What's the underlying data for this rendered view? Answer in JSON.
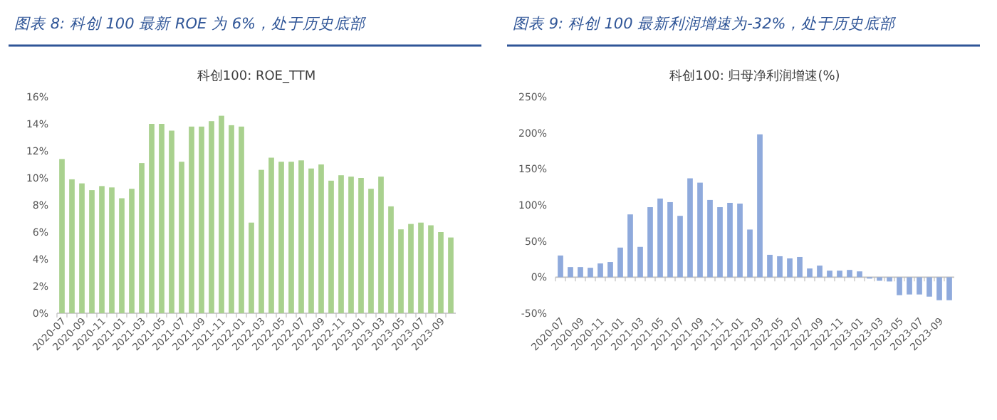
{
  "chart_data": [
    {
      "type": "bar",
      "title": "图表 8: 科创 100 最新 ROE 为 6%，处于历史底部",
      "subtitle": "科创100: ROE_TTM",
      "categories": [
        "2020-07",
        null,
        "2020-09",
        null,
        "2020-11",
        null,
        "2021-01",
        null,
        "2021-03",
        null,
        "2021-05",
        null,
        "2021-07",
        null,
        "2021-09",
        null,
        "2021-11",
        null,
        "2022-01",
        null,
        "2022-03",
        null,
        "2022-05",
        null,
        "2022-07",
        null,
        "2022-09",
        null,
        "2022-11",
        null,
        "2023-01",
        null,
        "2023-03",
        null,
        "2023-05",
        null,
        "2023-07",
        null,
        "2023-09",
        null
      ],
      "values": [
        11.4,
        9.9,
        9.6,
        9.1,
        9.4,
        9.3,
        8.5,
        9.2,
        11.1,
        14.0,
        14.0,
        13.5,
        11.2,
        13.8,
        13.8,
        14.2,
        14.6,
        13.9,
        13.8,
        6.7,
        10.6,
        11.5,
        11.2,
        11.2,
        11.3,
        10.7,
        11.0,
        9.8,
        10.2,
        10.1,
        10.0,
        9.2,
        10.1,
        7.9,
        6.2,
        6.6,
        6.7,
        6.5,
        6.0,
        5.6
      ],
      "color": "#a9d18e",
      "ylim": [
        0,
        16
      ],
      "yticks": [
        {
          "value": 0,
          "label": "0%"
        },
        {
          "value": 2,
          "label": "2%"
        },
        {
          "value": 4,
          "label": "4%"
        },
        {
          "value": 6,
          "label": "6%"
        },
        {
          "value": 8,
          "label": "8%"
        },
        {
          "value": 10,
          "label": "10%"
        },
        {
          "value": 12,
          "label": "12%"
        },
        {
          "value": 14,
          "label": "14%"
        },
        {
          "value": 16,
          "label": "16%"
        }
      ]
    },
    {
      "type": "bar",
      "title": "图表 9: 科创 100 最新利润增速为-32%，处于历史底部",
      "subtitle": "科创100: 归母净利润增速(%)",
      "categories": [
        "2020-07",
        null,
        "2020-09",
        null,
        "2020-11",
        null,
        "2021-01",
        null,
        "2021-03",
        null,
        "2021-05",
        null,
        "2021-07",
        null,
        "2021-09",
        null,
        "2021-11",
        null,
        "2022-01",
        null,
        "2022-03",
        null,
        "2022-05",
        null,
        "2022-07",
        null,
        "2022-09",
        null,
        "2022-11",
        null,
        "2023-01",
        null,
        "2023-03",
        null,
        "2023-05",
        null,
        "2023-07",
        null,
        "2023-09",
        null
      ],
      "values": [
        30,
        14,
        14,
        13,
        19,
        21,
        41,
        87,
        42,
        97,
        109,
        104,
        85,
        137,
        131,
        107,
        97,
        103,
        102,
        66,
        198,
        31,
        29,
        26,
        28,
        12,
        16,
        9,
        9,
        10,
        8,
        -2,
        -5,
        -6,
        -25,
        -24,
        -24,
        -27,
        -32,
        -32
      ],
      "color": "#8faadc",
      "ylim": [
        -50,
        250
      ],
      "yticks": [
        {
          "value": -50,
          "label": "-50%"
        },
        {
          "value": 0,
          "label": "0%"
        },
        {
          "value": 50,
          "label": "50%"
        },
        {
          "value": 100,
          "label": "100%"
        },
        {
          "value": 150,
          "label": "150%"
        },
        {
          "value": 200,
          "label": "200%"
        },
        {
          "value": 250,
          "label": "250%"
        }
      ]
    }
  ]
}
